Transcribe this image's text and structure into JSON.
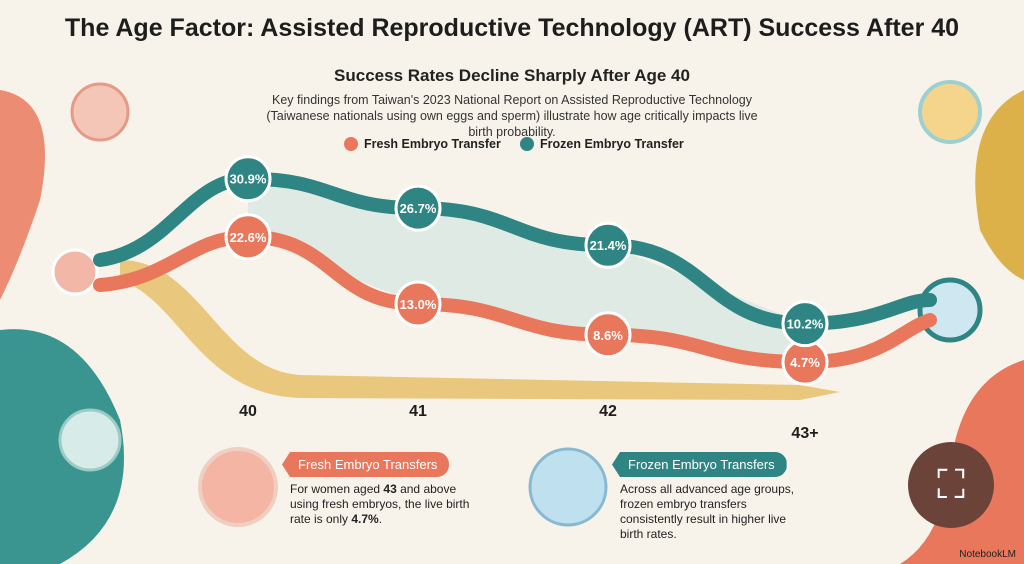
{
  "title": "The Age Factor: Assisted Reproductive Technology (ART) Success After 40",
  "subtitle": "Success Rates Decline Sharply After Age 40",
  "description": "Key findings from Taiwan's 2023 National Report on Assisted Reproductive Technology (Taiwanese nationals using own eggs and sperm) illustrate how age critically impacts live birth probability.",
  "chart_data": {
    "type": "line",
    "categories": [
      "40",
      "41",
      "42",
      "43+"
    ],
    "series": [
      {
        "name": "Fresh Embryo Transfer",
        "values": [
          22.6,
          13.0,
          8.6,
          4.7
        ],
        "labels": [
          "22.6%",
          "13.0%",
          "8.6%",
          "4.7%"
        ],
        "color": "#e8775c"
      },
      {
        "name": "Frozen Embryo Transfer",
        "values": [
          30.9,
          26.7,
          21.4,
          10.2
        ],
        "labels": [
          "30.9%",
          "26.7%",
          "21.4%",
          "10.2%"
        ],
        "color": "#2f8583"
      }
    ],
    "legend": "top-center",
    "grid": false,
    "ylim": [
      0,
      35
    ]
  },
  "cards": [
    {
      "heading": "Fresh Embryo Transfers",
      "text_a": "For women aged ",
      "bold_a": "43",
      "text_b": " and above using fresh embryos, the live birth rate is only ",
      "bold_b": "4.7%",
      "text_c": ".",
      "color": "#e8775c"
    },
    {
      "heading": "Frozen Embryo Transfers",
      "text_a": "Across all advanced age groups, frozen embryo transfers consistently result in higher live birth rates.",
      "color": "#2f8583"
    }
  ],
  "brand": "NotebookLM"
}
